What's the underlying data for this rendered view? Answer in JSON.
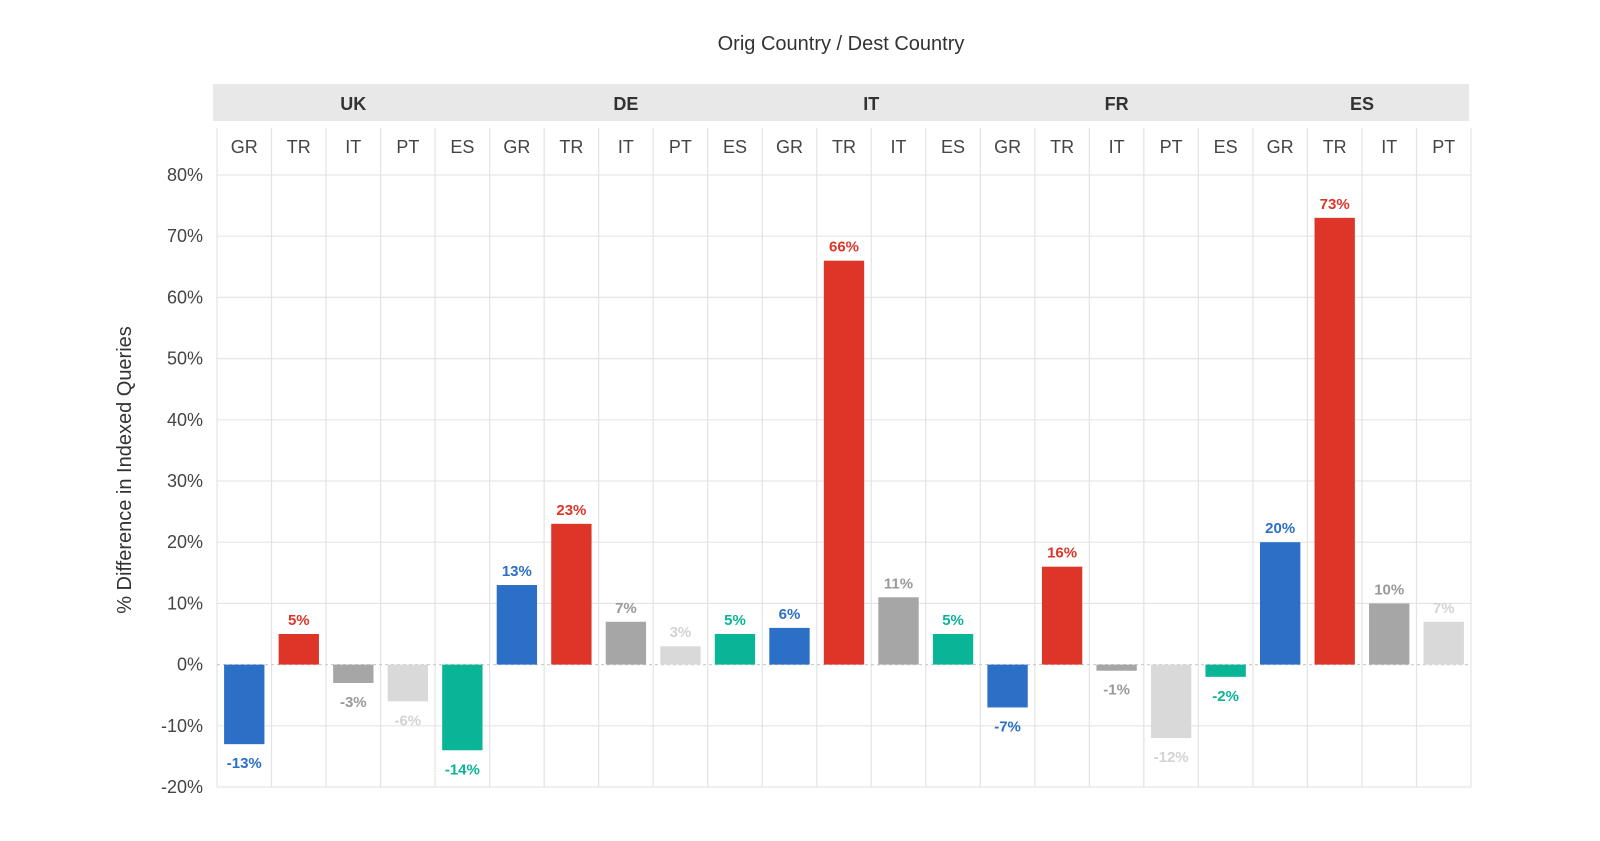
{
  "chart_data": {
    "type": "bar",
    "title": "Orig Country / Dest Country",
    "ylabel": "% Difference in Indexed Queries",
    "ylim": [
      -20,
      80
    ],
    "yticks": [
      -20,
      -10,
      0,
      10,
      20,
      30,
      40,
      50,
      60,
      70,
      80
    ],
    "y_tick_format": "percent",
    "grid": true,
    "legend": "none",
    "colors": {
      "GR": "#2b6fc7",
      "TR": "#de3529",
      "IT": "#a6a6a6",
      "PT": "#d9d9d9",
      "ES": "#09b596"
    },
    "label_colors": {
      "GR": "#2b6fc7",
      "TR": "#de3529",
      "IT": "#9a9a9a",
      "PT": "#d3d3d3",
      "ES": "#09b596"
    },
    "groups": [
      {
        "name": "UK",
        "bars": [
          {
            "dest": "GR",
            "value": -13
          },
          {
            "dest": "TR",
            "value": 5
          },
          {
            "dest": "IT",
            "value": -3
          },
          {
            "dest": "PT",
            "value": -6
          },
          {
            "dest": "ES",
            "value": -14
          }
        ]
      },
      {
        "name": "DE",
        "bars": [
          {
            "dest": "GR",
            "value": 13
          },
          {
            "dest": "TR",
            "value": 23
          },
          {
            "dest": "IT",
            "value": 7
          },
          {
            "dest": "PT",
            "value": 3
          },
          {
            "dest": "ES",
            "value": 5
          }
        ]
      },
      {
        "name": "IT",
        "bars": [
          {
            "dest": "GR",
            "value": 6
          },
          {
            "dest": "TR",
            "value": 66
          },
          {
            "dest": "IT",
            "value": 11
          },
          {
            "dest": "ES",
            "value": 5
          }
        ]
      },
      {
        "name": "FR",
        "bars": [
          {
            "dest": "GR",
            "value": -7
          },
          {
            "dest": "TR",
            "value": 16
          },
          {
            "dest": "IT",
            "value": -1
          },
          {
            "dest": "PT",
            "value": -12
          },
          {
            "dest": "ES",
            "value": -2
          }
        ]
      },
      {
        "name": "ES",
        "bars": [
          {
            "dest": "GR",
            "value": 20
          },
          {
            "dest": "TR",
            "value": 73
          },
          {
            "dest": "IT",
            "value": 10
          },
          {
            "dest": "PT",
            "value": 7
          }
        ]
      }
    ]
  }
}
